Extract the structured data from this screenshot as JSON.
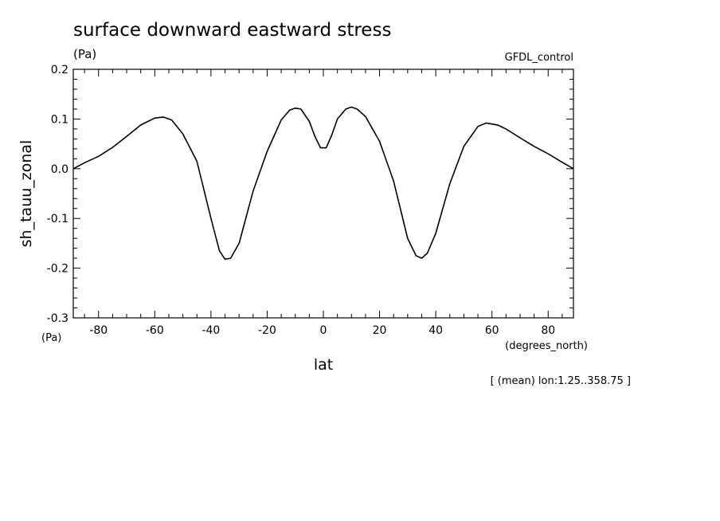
{
  "chart_data": {
    "type": "line",
    "title": "surface downward eastward stress",
    "title_units": "(Pa)",
    "dataset_label": "GFDL_control",
    "xlabel": "lat",
    "xlabel_units": "(degrees_north)",
    "ylabel": "sh_tauu_zonal",
    "ylabel_units": "(Pa)",
    "footnote": "[ (mean) lon:1.25..358.75 ]",
    "xlim": [
      -89,
      89
    ],
    "ylim": [
      -0.3,
      0.2
    ],
    "x_ticks": [
      -80,
      -60,
      -40,
      -20,
      0,
      20,
      40,
      60,
      80
    ],
    "x_tick_labels": [
      "-80",
      "-60",
      "-40",
      "-20",
      "0",
      "20",
      "40",
      "60",
      "80"
    ],
    "y_ticks": [
      0.2,
      0.1,
      0.0,
      -0.1,
      -0.2,
      -0.3
    ],
    "y_tick_labels": [
      "0.2",
      "0.1",
      "0.0",
      "-0.1",
      "-0.2",
      "-0.3"
    ],
    "grid": false,
    "line_color": "#000000",
    "series": [
      {
        "x": [
          -89,
          -85,
          -80,
          -75,
          -70,
          -65,
          -60,
          -57,
          -54,
          -50,
          -45,
          -40,
          -37,
          -35,
          -33,
          -30,
          -25,
          -20,
          -15,
          -12,
          -10,
          -8,
          -5,
          -3,
          -1,
          1,
          3,
          5,
          8,
          10,
          12,
          15,
          20,
          25,
          30,
          33,
          35,
          37,
          40,
          45,
          50,
          55,
          58,
          62,
          65,
          70,
          75,
          80,
          85,
          89
        ],
        "y": [
          0.0,
          0.012,
          0.025,
          0.043,
          0.065,
          0.088,
          0.102,
          0.104,
          0.098,
          0.07,
          0.015,
          -0.1,
          -0.165,
          -0.182,
          -0.18,
          -0.15,
          -0.045,
          0.035,
          0.098,
          0.118,
          0.122,
          0.12,
          0.095,
          0.065,
          0.042,
          0.042,
          0.068,
          0.1,
          0.12,
          0.124,
          0.12,
          0.105,
          0.055,
          -0.025,
          -0.14,
          -0.175,
          -0.18,
          -0.17,
          -0.13,
          -0.03,
          0.045,
          0.085,
          0.092,
          0.088,
          0.08,
          0.062,
          0.045,
          0.03,
          0.013,
          0.0
        ]
      }
    ]
  }
}
